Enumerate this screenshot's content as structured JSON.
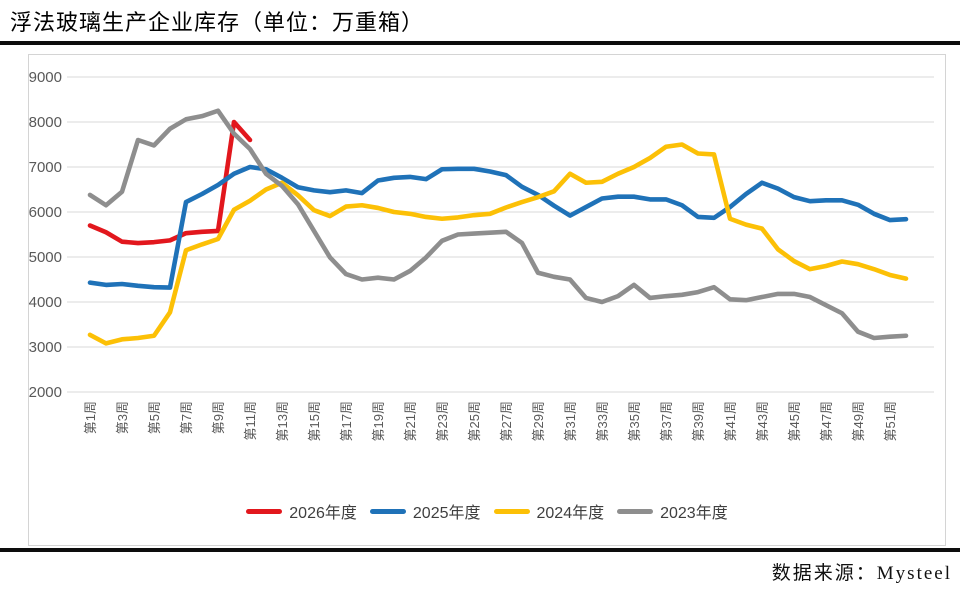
{
  "page": {
    "title": "浮法玻璃生产企业库存（单位：万重箱）",
    "source": "数据来源：Mysteel"
  },
  "chart_data": {
    "type": "line",
    "title": "浮法玻璃生产企业库存（单位：万重箱）",
    "unit": "万重箱",
    "grid": "horizontal",
    "legend_position": "bottom",
    "ylim": [
      2000,
      9000
    ],
    "y_ticks": [
      2000,
      3000,
      4000,
      5000,
      6000,
      7000,
      8000,
      9000
    ],
    "x_weeks_total": 52,
    "x_tick_labels": [
      "第1周",
      "第3周",
      "第5周",
      "第7周",
      "第9周",
      "第11周",
      "第13周",
      "第15周",
      "第17周",
      "第19周",
      "第21周",
      "第23周",
      "第25周",
      "第27周",
      "第29周",
      "第31周",
      "第33周",
      "第35周",
      "第37周",
      "第39周",
      "第41周",
      "第43周",
      "第45周",
      "第47周",
      "第49周",
      "第51周"
    ],
    "tick_color": "#595959",
    "gridline_color": "#d9d9d9",
    "series": [
      {
        "name": "2026年度",
        "color": "#e2171d",
        "start_week": 1,
        "values": [
          5700,
          5550,
          5340,
          5310,
          5330,
          5370,
          5530,
          5560,
          5580,
          8000,
          7600
        ]
      },
      {
        "name": "2025年度",
        "color": "#1f72b8",
        "start_week": 1,
        "values": [
          4430,
          4380,
          4400,
          4360,
          4330,
          4320,
          6220,
          6400,
          6600,
          6850,
          7000,
          6950,
          6760,
          6550,
          6480,
          6440,
          6480,
          6420,
          6700,
          6760,
          6780,
          6730,
          6950,
          6960,
          6960,
          6900,
          6820,
          6560,
          6380,
          6140,
          5920,
          6110,
          6300,
          6340,
          6340,
          6280,
          6280,
          6150,
          5890,
          5870,
          6110,
          6400,
          6650,
          6520,
          6330,
          6240,
          6260,
          6260,
          6160,
          5960,
          5820,
          5840
        ]
      },
      {
        "name": "2024年度",
        "color": "#fcc006",
        "start_week": 1,
        "values": [
          3270,
          3080,
          3170,
          3200,
          3250,
          3770,
          5150,
          5280,
          5400,
          6050,
          6250,
          6500,
          6650,
          6370,
          6040,
          5910,
          6120,
          6150,
          6090,
          6000,
          5960,
          5890,
          5850,
          5880,
          5930,
          5960,
          6100,
          6220,
          6330,
          6460,
          6850,
          6650,
          6670,
          6850,
          7000,
          7200,
          7450,
          7500,
          7300,
          7280,
          5850,
          5720,
          5630,
          5170,
          4910,
          4730,
          4800,
          4900,
          4840,
          4730,
          4600,
          4520
        ]
      },
      {
        "name": "2023年度",
        "color": "#8e8e8e",
        "start_week": 1,
        "values": [
          6380,
          6150,
          6450,
          7600,
          7480,
          7850,
          8060,
          8130,
          8250,
          7740,
          7400,
          6850,
          6580,
          6170,
          5580,
          4990,
          4620,
          4500,
          4540,
          4500,
          4690,
          4990,
          5360,
          5500,
          5520,
          5540,
          5560,
          5310,
          4650,
          4560,
          4500,
          4090,
          4000,
          4130,
          4380,
          4090,
          4130,
          4160,
          4220,
          4330,
          4060,
          4040,
          4110,
          4180,
          4180,
          4110,
          3930,
          3750,
          3340,
          3200,
          3230,
          3250
        ]
      }
    ]
  }
}
